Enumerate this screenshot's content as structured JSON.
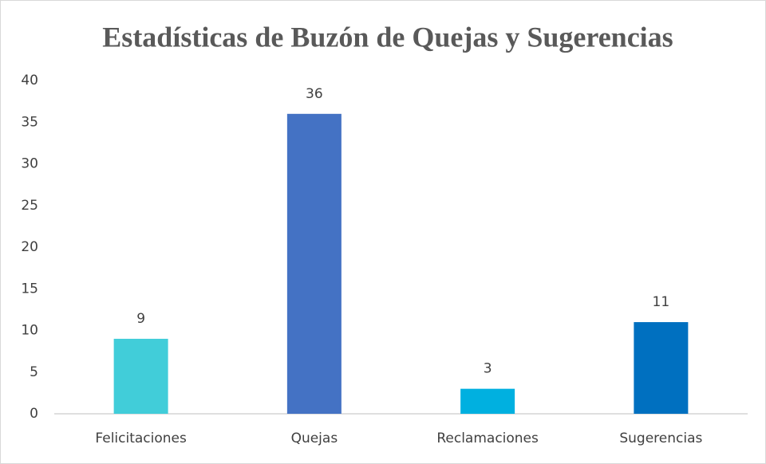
{
  "chart_data": {
    "type": "bar",
    "title": "Estadísticas de Buzón de Quejas y Sugerencias",
    "categories": [
      "Felicitaciones",
      "Quejas",
      "Reclamaciones",
      "Sugerencias"
    ],
    "values": [
      9,
      36,
      3,
      11
    ],
    "colors": [
      "#41cdd9",
      "#4472c4",
      "#00b0e0",
      "#0070c0"
    ],
    "ylim": [
      0,
      40
    ],
    "yticks": [
      0,
      5,
      10,
      15,
      20,
      25,
      30,
      35,
      40
    ],
    "grid": false,
    "data_labels": true
  }
}
